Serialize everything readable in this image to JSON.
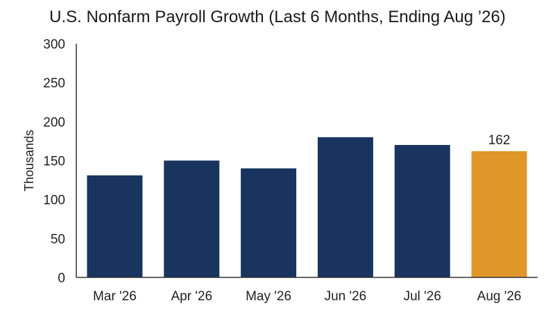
{
  "chart_data": {
    "type": "bar",
    "title": "U.S. Nonfarm Payroll Growth (Last 6 Months, Ending Aug ’26)",
    "xlabel": "",
    "ylabel": "Thousands",
    "categories": [
      "Mar '26",
      "Apr '26",
      "May '26",
      "Jun '26",
      "Jul '26",
      "Aug '26"
    ],
    "values": [
      131,
      150,
      140,
      180,
      170,
      162
    ],
    "ylim": [
      0,
      300
    ],
    "yticks": [
      0,
      50,
      100,
      150,
      200,
      250,
      300
    ],
    "data_labels": [
      {
        "category": "Aug '26",
        "text": "162"
      }
    ],
    "grid": false,
    "legend": "none",
    "colors": {
      "bar": "#19345e",
      "highlight": "#e0972a",
      "axis": "#333333"
    },
    "highlight_category": "Aug '26"
  }
}
